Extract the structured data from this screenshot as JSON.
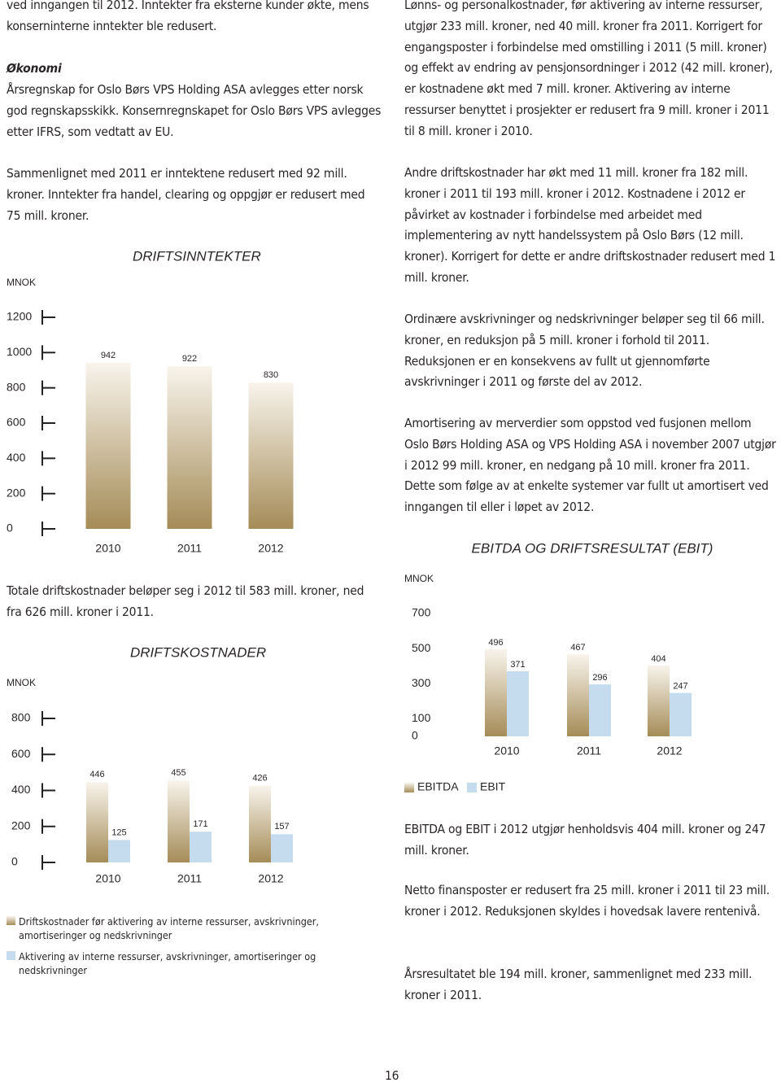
{
  "document": {
    "left": [
      "ved inngangen til 2012. Inntekter fra eksterne kunder økte, mens konserninterne inntekter ble redusert.",
      "Årsregnskap for Oslo Børs VPS Holding ASA avlegges etter norsk god regnskapsskikk. Konsernregnskapet for Oslo Børs VPS avlegges etter IFRS, som vedtatt av EU.",
      "Sammenlignet med 2011 er inntektene redusert med 92 mill. kroner. Inntekter fra handel, clearing og oppgjør er redusert med 75 mill. kroner.",
      "Totale driftskostnader beløper seg i 2012 til 583 mill. kroner, ned fra 626 mill. kroner i 2011."
    ],
    "heading": "Økonomi",
    "right": [
      "Lønns- og personalkostnader, før aktivering av interne ressurser, utgjør 233 mill. kroner, ned 40 mill. kroner fra 2011. Korrigert for engangsposter i forbindelse med omstilling i 2011 (5 mill. kroner) og effekt av endring av pensjonsordninger i 2012 (42 mill. kroner), er kostnadene økt med 7 mill. kroner. Aktivering av interne ressurser benyttet i prosjekter er redusert fra 9 mill. kroner i 2011 til 8 mill. kroner i 2010.",
      "Andre driftskostnader har økt med 11 mill. kroner fra 182 mill. kroner i 2011 til 193 mill. kroner i 2012. Kostnadene i 2012 er påvirket av kostnader i forbindelse med arbeidet med implementering av nytt handelssystem på Oslo Børs (12 mill. kroner). Korrigert for dette er andre driftskostnader redusert med 1 mill. kroner.",
      "Ordinære avskrivninger og nedskrivninger beløper seg til 66 mill. kroner, en reduksjon på 5 mill. kroner i forhold til 2011. Reduksjonen er en konsekvens av fullt ut gjennomførte avskrivninger i 2011 og første del av 2012.",
      "Amortisering av merverdier som oppstod ved fusjonen mellom Oslo Børs Holding ASA og VPS Holding ASA i november 2007 utgjør i 2012 99 mill. kroner, en nedgang på 10 mill. kroner fra 2011. Dette som følge av at enkelte systemer var fullt ut amortisert ved inngangen til eller i løpet av 2012.",
      "EBITDA og EBIT i 2012 utgjør henholdsvis 404 mill. kroner og 247 mill. kroner.",
      "Netto finansposter er redusert fra 25 mill. kroner i 2011 til 23 mill. kroner i 2012. Reduksjonen skyldes i hovedsak lavere rentenivå.",
      "Årsresultatet ble 194 mill. kroner, sammenlignet med 233 mill. kroner i 2011."
    ],
    "page_number": "16"
  },
  "chart_data": [
    {
      "type": "bar",
      "title": "DRIFTSINNTEKTER",
      "y_label": "MNOK",
      "categories": [
        "2010",
        "2011",
        "2012"
      ],
      "values": [
        942,
        922,
        830
      ],
      "color": "#a58c58",
      "ylim": [
        0,
        1200
      ],
      "yticks": [
        0,
        200,
        400,
        600,
        800,
        1000,
        1200
      ],
      "tick_marks": true
    },
    {
      "type": "bar",
      "title": "DRIFTSKOSTNADER",
      "y_label": "MNOK",
      "categories": [
        "2010",
        "2011",
        "2012"
      ],
      "series": [
        {
          "name": "Driftskostnader før aktivering av interne ressurser, avskrivninger, amortiseringer og nedskrivninger",
          "color": "#a58c58",
          "values": [
            446,
            455,
            426
          ]
        },
        {
          "name": "Aktivering av interne ressurser, avskrivninger, amortiseringer og nedskrivninger",
          "color": "#c5dcef",
          "values": [
            125,
            171,
            157
          ]
        }
      ],
      "ylim": [
        0,
        800
      ],
      "yticks": [
        0,
        200,
        400,
        600,
        800
      ],
      "tick_marks": true
    },
    {
      "type": "bar",
      "title": "EBITDA OG DRIFTSRESULTAT (EBIT)",
      "y_label": "MNOK",
      "categories": [
        "2010",
        "2011",
        "2012"
      ],
      "series": [
        {
          "name": "EBITDA",
          "color": "#a58c58",
          "values": [
            496,
            467,
            404
          ]
        },
        {
          "name": "EBIT",
          "color": "#c5dcef",
          "values": [
            371,
            296,
            247
          ]
        }
      ],
      "ylim": [
        0,
        700
      ],
      "yticks": [
        0,
        100,
        300,
        500,
        700
      ],
      "tick_marks": false
    }
  ]
}
